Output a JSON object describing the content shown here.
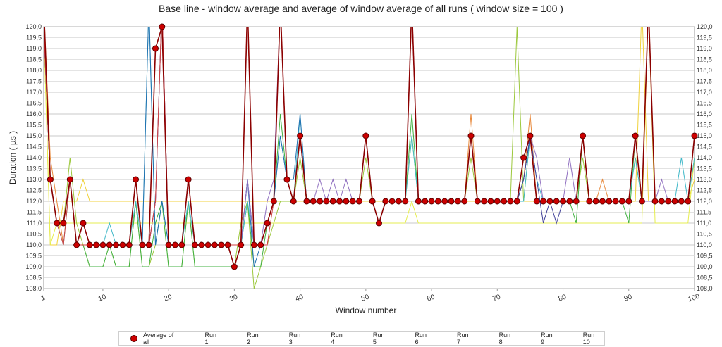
{
  "chart_data": {
    "type": "line",
    "title": "Base line - window average and average of window average of all runs ( window size = 100 )",
    "xlabel": "Window number",
    "ylabel": "Duration ( µs )",
    "xlim": [
      1,
      100
    ],
    "ylim": [
      108,
      120
    ],
    "x_ticks": [
      "1",
      "10",
      "20",
      "30",
      "40",
      "50",
      "60",
      "70",
      "80",
      "90",
      "100"
    ],
    "y_ticks": [
      "108,0",
      "108,5",
      "109,0",
      "109,5",
      "110,0",
      "110,5",
      "111,0",
      "111,5",
      "112,0",
      "112,5",
      "113,0",
      "113,5",
      "114,0",
      "114,5",
      "115,0",
      "115,5",
      "116,0",
      "116,5",
      "117,0",
      "117,5",
      "118,0",
      "118,5",
      "119,0",
      "119,5",
      "120,0"
    ],
    "grid": true,
    "legend_position": "bottom",
    "average_series": {
      "name": "Average of all",
      "color": "#cc0000",
      "values": [
        121,
        113,
        111,
        111,
        113,
        110,
        111,
        110,
        110,
        110,
        110,
        110,
        110,
        110,
        113,
        110,
        110,
        119,
        120,
        110,
        110,
        110,
        113,
        110,
        110,
        110,
        110,
        110,
        110,
        109,
        110,
        121,
        110,
        110,
        111,
        112,
        121,
        113,
        112,
        115,
        112,
        112,
        112,
        112,
        112,
        112,
        112,
        112,
        112,
        115,
        112,
        111,
        112,
        112,
        112,
        112,
        121,
        112,
        112,
        112,
        112,
        112,
        112,
        112,
        112,
        115,
        112,
        112,
        112,
        112,
        112,
        112,
        112,
        114,
        115,
        112,
        112,
        112,
        112,
        112,
        112,
        112,
        115,
        112,
        112,
        112,
        112,
        112,
        112,
        112,
        115,
        112,
        121,
        112,
        112,
        112,
        112,
        112,
        112,
        115
      ]
    },
    "series": [
      {
        "name": "Run 1",
        "color": "#e8883a",
        "values": [
          121,
          114,
          112,
          110,
          113,
          110,
          110,
          110,
          110,
          110,
          110,
          110,
          110,
          110,
          113,
          110,
          110,
          112,
          121,
          110,
          110,
          110,
          113,
          110,
          110,
          110,
          110,
          110,
          110,
          110,
          110,
          121,
          110,
          110,
          111,
          112,
          121,
          113,
          112,
          115,
          112,
          112,
          112,
          112,
          112,
          112,
          112,
          112,
          112,
          115,
          112,
          111,
          112,
          112,
          112,
          112,
          121,
          112,
          112,
          112,
          112,
          112,
          112,
          112,
          112,
          116,
          112,
          112,
          112,
          112,
          112,
          112,
          112,
          113,
          116,
          112,
          112,
          112,
          112,
          112,
          112,
          112,
          115,
          112,
          112,
          113,
          112,
          112,
          112,
          112,
          115,
          112,
          121,
          112,
          112,
          112,
          112,
          112,
          112,
          115
        ]
      },
      {
        "name": "Run 2",
        "color": "#f0d23c",
        "values": [
          120,
          110,
          110,
          112,
          112,
          112,
          113,
          112,
          112,
          112,
          112,
          112,
          112,
          112,
          112,
          112,
          112,
          112,
          112,
          112,
          112,
          112,
          112,
          112,
          112,
          112,
          112,
          112,
          112,
          112,
          112,
          112,
          112,
          112,
          112,
          112,
          112,
          112,
          112,
          112,
          112,
          112,
          112,
          112,
          112,
          112,
          112,
          112,
          112,
          112,
          112,
          112,
          112,
          112,
          112,
          112,
          121,
          112,
          112,
          112,
          112,
          112,
          112,
          112,
          112,
          112,
          112,
          112,
          112,
          112,
          112,
          112,
          112,
          112,
          112,
          112,
          112,
          112,
          112,
          112,
          112,
          112,
          112,
          112,
          112,
          112,
          112,
          112,
          112,
          112,
          112,
          121,
          112,
          112,
          112,
          112,
          112,
          112,
          112,
          113
        ]
      },
      {
        "name": "Run 3",
        "color": "#e6ee50",
        "values": [
          120,
          110,
          111,
          111,
          111,
          111,
          111,
          111,
          111,
          111,
          111,
          111,
          111,
          111,
          111,
          111,
          111,
          111,
          111,
          111,
          111,
          111,
          111,
          111,
          111,
          111,
          111,
          111,
          111,
          111,
          111,
          111,
          111,
          111,
          111,
          111,
          111,
          111,
          111,
          111,
          111,
          111,
          111,
          111,
          111,
          111,
          111,
          111,
          111,
          111,
          111,
          111,
          111,
          111,
          111,
          111,
          112,
          111,
          111,
          111,
          111,
          111,
          111,
          111,
          111,
          111,
          111,
          111,
          111,
          111,
          111,
          111,
          111,
          111,
          111,
          111,
          111,
          111,
          111,
          111,
          111,
          111,
          111,
          111,
          111,
          111,
          111,
          111,
          111,
          111,
          111,
          111,
          121,
          111,
          111,
          111,
          111,
          111,
          111,
          114
        ]
      },
      {
        "name": "Run 4",
        "color": "#9cc83c",
        "values": [
          120,
          113,
          111,
          111,
          114,
          111,
          110,
          109,
          109,
          109,
          110,
          109,
          109,
          109,
          112,
          109,
          109,
          110,
          112,
          109,
          109,
          109,
          112,
          109,
          109,
          109,
          109,
          109,
          109,
          109,
          111,
          112,
          108,
          109,
          110,
          111,
          112,
          112,
          112,
          114,
          112,
          112,
          112,
          112,
          112,
          112,
          112,
          112,
          112,
          114,
          112,
          111,
          112,
          112,
          112,
          112,
          115,
          112,
          112,
          112,
          112,
          112,
          112,
          112,
          112,
          114,
          112,
          112,
          112,
          112,
          112,
          112,
          120,
          112,
          115,
          112,
          112,
          112,
          112,
          112,
          112,
          112,
          114,
          112,
          112,
          112,
          112,
          112,
          112,
          112,
          114,
          112,
          112,
          112,
          112,
          112,
          112,
          112,
          112,
          114
        ]
      },
      {
        "name": "Run 5",
        "color": "#40b040",
        "values": [
          120,
          113,
          111,
          111,
          113,
          110,
          110,
          109,
          109,
          109,
          110,
          109,
          109,
          109,
          112,
          109,
          109,
          111,
          112,
          109,
          109,
          109,
          112,
          109,
          109,
          109,
          109,
          109,
          109,
          109,
          110,
          112,
          109,
          109,
          111,
          112,
          116,
          113,
          112,
          115,
          112,
          112,
          112,
          112,
          112,
          112,
          112,
          112,
          112,
          115,
          112,
          111,
          112,
          112,
          112,
          112,
          116,
          112,
          112,
          112,
          112,
          112,
          112,
          112,
          112,
          115,
          112,
          112,
          112,
          112,
          112,
          112,
          112,
          113,
          115,
          112,
          112,
          112,
          112,
          112,
          112,
          111,
          115,
          112,
          112,
          112,
          112,
          112,
          112,
          111,
          115,
          112,
          112,
          112,
          112,
          112,
          112,
          112,
          112,
          115
        ]
      },
      {
        "name": "Run 6",
        "color": "#40b8c8",
        "values": [
          120,
          113,
          111,
          110,
          113,
          110,
          110,
          110,
          110,
          110,
          111,
          110,
          110,
          110,
          112,
          110,
          121,
          110,
          112,
          110,
          110,
          110,
          112,
          110,
          110,
          110,
          110,
          110,
          110,
          110,
          110,
          112,
          110,
          110,
          111,
          112,
          115,
          113,
          112,
          116,
          112,
          112,
          112,
          112,
          112,
          112,
          112,
          112,
          112,
          115,
          112,
          111,
          112,
          112,
          112,
          112,
          115,
          112,
          112,
          112,
          112,
          112,
          112,
          112,
          112,
          115,
          112,
          112,
          112,
          112,
          112,
          112,
          112,
          112,
          115,
          113,
          112,
          112,
          112,
          112,
          112,
          112,
          115,
          112,
          112,
          112,
          112,
          112,
          112,
          112,
          114,
          112,
          112,
          112,
          112,
          112,
          112,
          114,
          112,
          114
        ]
      },
      {
        "name": "Run 7",
        "color": "#2070b0",
        "values": [
          120,
          113,
          111,
          111,
          113,
          110,
          110,
          110,
          110,
          110,
          110,
          110,
          110,
          110,
          113,
          110,
          121,
          110,
          112,
          110,
          110,
          110,
          113,
          110,
          110,
          110,
          110,
          110,
          110,
          110,
          110,
          113,
          109,
          110,
          111,
          112,
          115,
          113,
          113,
          116,
          112,
          112,
          112,
          112,
          112,
          112,
          112,
          112,
          112,
          115,
          112,
          111,
          112,
          112,
          112,
          112,
          121,
          112,
          112,
          112,
          112,
          112,
          112,
          112,
          112,
          115,
          112,
          112,
          112,
          112,
          112,
          112,
          112,
          113,
          115,
          112,
          112,
          112,
          112,
          112,
          112,
          112,
          115,
          112,
          112,
          112,
          112,
          112,
          112,
          112,
          115,
          112,
          112,
          112,
          112,
          112,
          112,
          112,
          112,
          115
        ]
      },
      {
        "name": "Run 8",
        "color": "#404098",
        "values": [
          120,
          113,
          111,
          111,
          113,
          110,
          110,
          110,
          110,
          110,
          110,
          110,
          110,
          110,
          113,
          110,
          110,
          112,
          121,
          110,
          110,
          110,
          113,
          110,
          110,
          110,
          110,
          110,
          110,
          110,
          110,
          113,
          110,
          110,
          111,
          112,
          121,
          113,
          112,
          115,
          112,
          112,
          112,
          112,
          112,
          112,
          112,
          112,
          112,
          115,
          112,
          111,
          112,
          112,
          112,
          112,
          121,
          112,
          112,
          112,
          112,
          112,
          112,
          112,
          112,
          115,
          112,
          112,
          112,
          112,
          112,
          112,
          112,
          113,
          115,
          113,
          111,
          112,
          111,
          112,
          112,
          112,
          115,
          112,
          112,
          112,
          112,
          112,
          112,
          112,
          115,
          112,
          112,
          112,
          112,
          112,
          112,
          112,
          112,
          115
        ]
      },
      {
        "name": "Run 9",
        "color": "#9070c0",
        "values": [
          120,
          113,
          111,
          111,
          113,
          110,
          110,
          110,
          110,
          110,
          110,
          110,
          110,
          110,
          113,
          110,
          110,
          112,
          121,
          110,
          110,
          110,
          113,
          110,
          110,
          110,
          110,
          110,
          110,
          110,
          110,
          113,
          110,
          110,
          112,
          113,
          121,
          113,
          112,
          115,
          112,
          112,
          113,
          112,
          113,
          112,
          113,
          112,
          112,
          115,
          112,
          111,
          112,
          112,
          112,
          112,
          121,
          112,
          112,
          112,
          112,
          112,
          112,
          112,
          112,
          115,
          112,
          112,
          112,
          112,
          112,
          112,
          112,
          114,
          115,
          114,
          112,
          112,
          112,
          112,
          114,
          112,
          115,
          112,
          112,
          112,
          112,
          112,
          112,
          112,
          115,
          112,
          112,
          112,
          113,
          112,
          112,
          112,
          112,
          115
        ]
      },
      {
        "name": "Run 10",
        "color": "#d04040",
        "values": [
          120,
          113,
          111,
          110,
          113,
          110,
          110,
          110,
          110,
          110,
          110,
          110,
          110,
          110,
          113,
          110,
          110,
          112,
          121,
          110,
          110,
          110,
          113,
          110,
          110,
          110,
          110,
          110,
          110,
          110,
          110,
          121,
          110,
          110,
          110,
          112,
          121,
          113,
          112,
          115,
          112,
          112,
          112,
          112,
          112,
          112,
          112,
          112,
          112,
          115,
          112,
          111,
          112,
          112,
          112,
          112,
          121,
          112,
          112,
          112,
          112,
          112,
          112,
          112,
          112,
          115,
          112,
          112,
          112,
          112,
          112,
          112,
          112,
          114,
          115,
          112,
          112,
          112,
          112,
          112,
          112,
          112,
          115,
          112,
          112,
          112,
          112,
          112,
          112,
          112,
          115,
          112,
          121,
          112,
          112,
          112,
          112,
          112,
          112,
          115
        ]
      }
    ]
  }
}
